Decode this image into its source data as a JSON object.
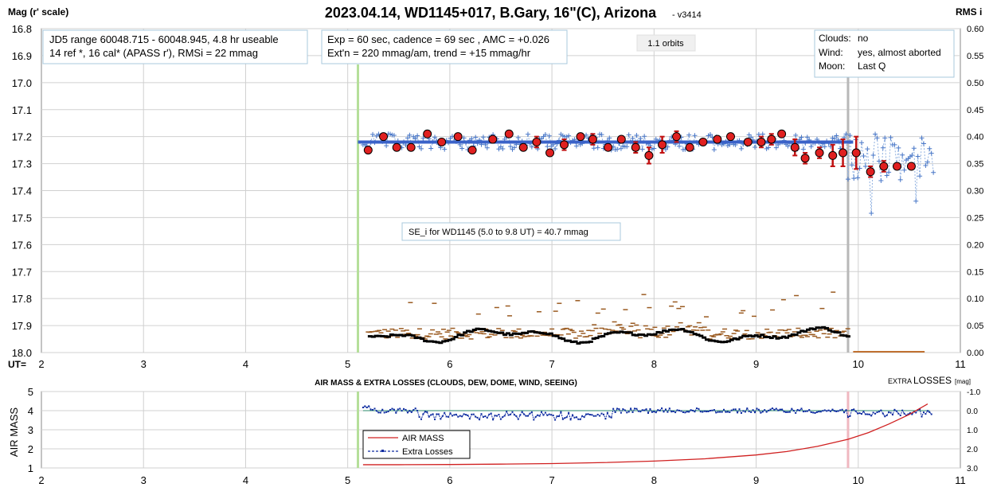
{
  "colors": {
    "grid": "#d0d0d0",
    "axis": "#888888",
    "raw_points": "#4a78c8",
    "raw_line": "#8fb0e0",
    "binned_fill": "#e02020",
    "binned_error": "#c01010",
    "trend_line": "#3a62c8",
    "rms_raw": "#9a5a20",
    "rms_avg": "#000000",
    "start_marker": "#b5df9a",
    "end_marker": "#b8b8b8",
    "end_marker_lower": "#f0b8c0",
    "airmass_line": "#d02020",
    "losses_line": "#0d2ba0",
    "losses_trend": "#2a8a6a"
  },
  "chart_data": [
    {
      "type": "scatter",
      "title": "2023.04.14, WD1145+017, B.Gary, 16\"(C), Arizona",
      "version": "- v3414",
      "ylabel_left": "Mag (r' scale)",
      "ylabel_right": "RMS i",
      "xlabel": "UT=",
      "xlim": [
        2,
        11
      ],
      "ylim": [
        18.0,
        16.8
      ],
      "y_ticks": [
        "16.8",
        "16.9",
        "17.0",
        "17.1",
        "17.2",
        "17.3",
        "17.4",
        "17.5",
        "17.6",
        "17.7",
        "17.8",
        "17.9",
        "18.0"
      ],
      "y2lim": [
        0.0,
        0.6
      ],
      "y2_ticks": [
        "0.60",
        "0.55",
        "0.50",
        "0.45",
        "0.40",
        "0.35",
        "0.30",
        "0.25",
        "0.20",
        "0.15",
        "0.10",
        "0.05",
        "0.00"
      ],
      "x_ticks": [
        "2",
        "3",
        "4",
        "5",
        "6",
        "7",
        "8",
        "9",
        "10",
        "11"
      ],
      "grid": true,
      "start_ut": 5.1,
      "end_ut": 9.9,
      "trend": {
        "x": [
          5.1,
          9.95
        ],
        "y": [
          17.22,
          17.22
        ]
      },
      "binned": {
        "x": [
          5.2,
          5.35,
          5.48,
          5.62,
          5.78,
          5.92,
          6.08,
          6.22,
          6.42,
          6.58,
          6.72,
          6.85,
          6.98,
          7.12,
          7.28,
          7.4,
          7.55,
          7.68,
          7.82,
          7.95,
          8.08,
          8.22,
          8.35,
          8.48,
          8.62,
          8.75,
          8.92,
          9.05,
          9.15,
          9.25,
          9.38,
          9.48,
          9.62,
          9.75,
          9.85,
          9.98,
          10.12,
          10.25,
          10.38,
          10.52
        ],
        "y": [
          17.25,
          17.2,
          17.24,
          17.24,
          17.19,
          17.22,
          17.2,
          17.25,
          17.21,
          17.19,
          17.24,
          17.22,
          17.26,
          17.23,
          17.2,
          17.21,
          17.24,
          17.21,
          17.24,
          17.27,
          17.23,
          17.2,
          17.24,
          17.22,
          17.21,
          17.2,
          17.22,
          17.22,
          17.21,
          17.19,
          17.24,
          17.28,
          17.26,
          17.27,
          17.26,
          17.26,
          17.33,
          17.31,
          17.31,
          17.31
        ],
        "err": [
          0.01,
          0.01,
          0.01,
          0.01,
          0.01,
          0.01,
          0.01,
          0.01,
          0.01,
          0.01,
          0.01,
          0.02,
          0.01,
          0.02,
          0.01,
          0.02,
          0.01,
          0.01,
          0.02,
          0.03,
          0.03,
          0.02,
          0.01,
          0.01,
          0.01,
          0.01,
          0.01,
          0.02,
          0.02,
          0.01,
          0.03,
          0.02,
          0.02,
          0.04,
          0.05,
          0.06,
          0.02,
          0.02,
          0.0,
          0.0
        ]
      },
      "rms_avg_level": 0.03
    },
    {
      "type": "line",
      "title": "AIR MASS & EXTRA LOSSES (CLOUDS, DEW, DOME, WIND, SEEING)",
      "ylabel_left": "AIR MASS",
      "ylabel_right_prefix": "EXTRA",
      "ylabel_right_main": "LOSSES",
      "ylabel_right_unit": "[mag]",
      "xlim": [
        2,
        11
      ],
      "ylim": [
        1,
        5
      ],
      "y_ticks": [
        "5",
        "4",
        "3",
        "2",
        "1"
      ],
      "y2lim": [
        -1.0,
        3.0
      ],
      "y2_ticks": [
        "-1.0",
        "0.0",
        "1.0",
        "2.0",
        "3.0"
      ],
      "x_ticks": [
        "2",
        "3",
        "4",
        "5",
        "6",
        "7",
        "8",
        "9",
        "10",
        "11"
      ],
      "grid": true,
      "legend": [
        "AIR MASS",
        "Extra Losses"
      ],
      "airmass": {
        "x": [
          5.15,
          5.5,
          6.0,
          6.5,
          7.0,
          7.5,
          8.0,
          8.5,
          9.0,
          9.3,
          9.6,
          9.9,
          10.1,
          10.3,
          10.5,
          10.68
        ],
        "y": [
          1.17,
          1.17,
          1.18,
          1.2,
          1.23,
          1.28,
          1.36,
          1.48,
          1.68,
          1.86,
          2.13,
          2.5,
          2.85,
          3.3,
          3.8,
          4.35
        ]
      }
    }
  ],
  "annotations": {
    "box1": [
      "JD5 range 60048.715 - 60048.945, 4.8 hr useable",
      "14 ref *, 16 cal*  (APASS r'), RMSi = 22 mmag"
    ],
    "box2": [
      "Exp = 60 sec, cadence = 69 sec , AMC = +0.026",
      "Ext'n = 220 mmag/am, trend = +15 mmag/hr"
    ],
    "orbits": "1.1 orbits",
    "conditions": [
      [
        "Clouds:",
        "no"
      ],
      [
        "Wind:",
        "yes, almost aborted"
      ],
      [
        "Moon:",
        "Last Q"
      ]
    ],
    "se_note": "SE_i for WD1145 (5.0 to 9.8 UT) = 40.7 mmag"
  }
}
